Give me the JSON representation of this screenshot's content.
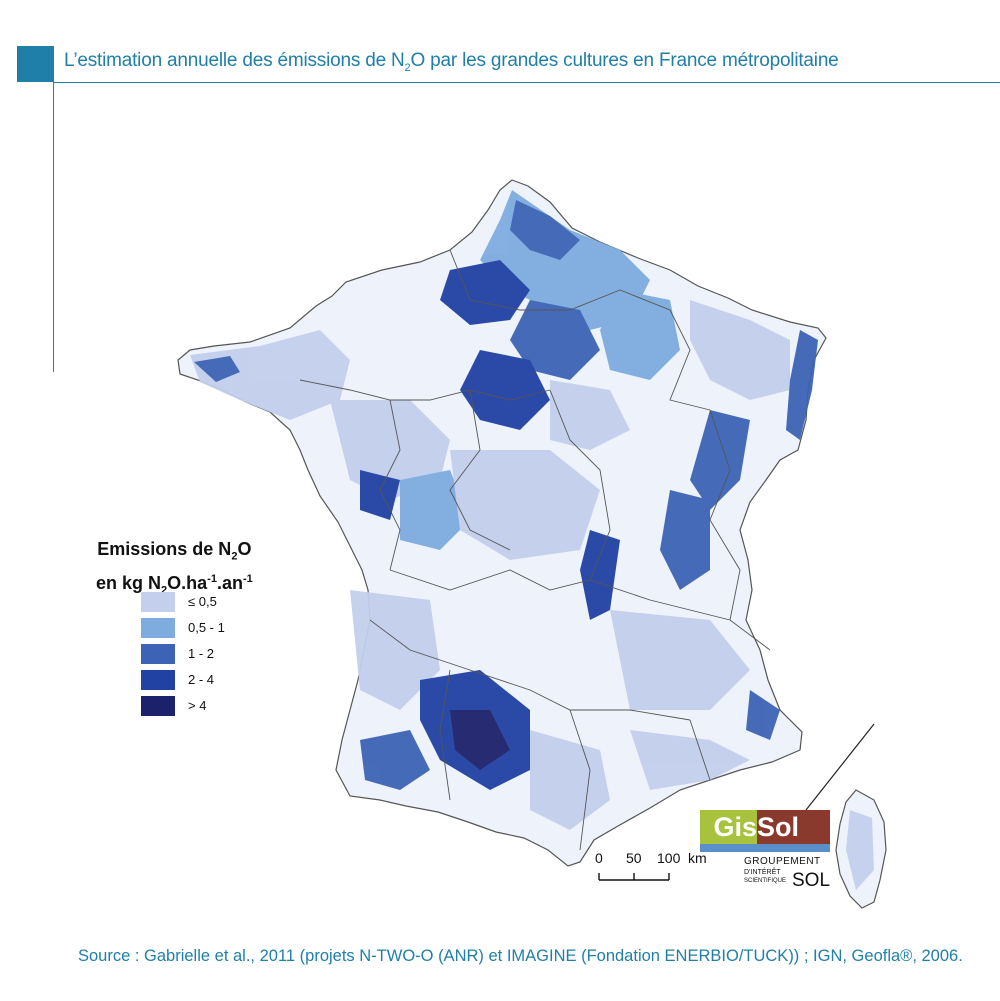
{
  "header": {
    "title_pre": "L’estimation annuelle des émissions de N",
    "title_sub": "2",
    "title_post": "O par les grandes cultures en France métropolitaine",
    "accent_color": "#1f7fa8"
  },
  "legend": {
    "title_line1_pre": "Emissions de N",
    "title_line1_sub": "2",
    "title_line1_post": "O",
    "title_line2_a": "en kg N",
    "title_line2_sub": "2",
    "title_line2_b": "O.ha",
    "title_line2_sup1": "-1",
    "title_line2_c": ".an",
    "title_line2_sup2": "-1",
    "classes": [
      {
        "label": "≤ 0,5",
        "color": "#c3cfec"
      },
      {
        "label": "0,5 - 1",
        "color": "#7eacdf"
      },
      {
        "label": "1 - 2",
        "color": "#3c63b5"
      },
      {
        "label": "2 - 4",
        "color": "#2142a3"
      },
      {
        "label": "> 4",
        "color": "#1c216b"
      }
    ]
  },
  "scale": {
    "labels": [
      "0",
      "50",
      "100"
    ],
    "unit": "km"
  },
  "logo": {
    "gis": "Gis",
    "sol": "Sol",
    "line1": "GROUPEMENT",
    "line2": "D’INTÉRÊT",
    "line3": "SCIENTIFIQUE",
    "line_sol": "SOL",
    "colors": {
      "green": "#a8c23d",
      "brown": "#8a3a2c",
      "blue": "#5b8fc9"
    }
  },
  "source": "Source : Gabrielle et al., 2011 (projets N-TWO-O (ANR) et IMAGINE (Fondation ENERBIO/TUCK)) ; IGN, Geofla®, 2006.",
  "map": {
    "region": "France métropolitaine",
    "colors": {
      "border": "#555555",
      "land": "#eef2fb"
    }
  }
}
